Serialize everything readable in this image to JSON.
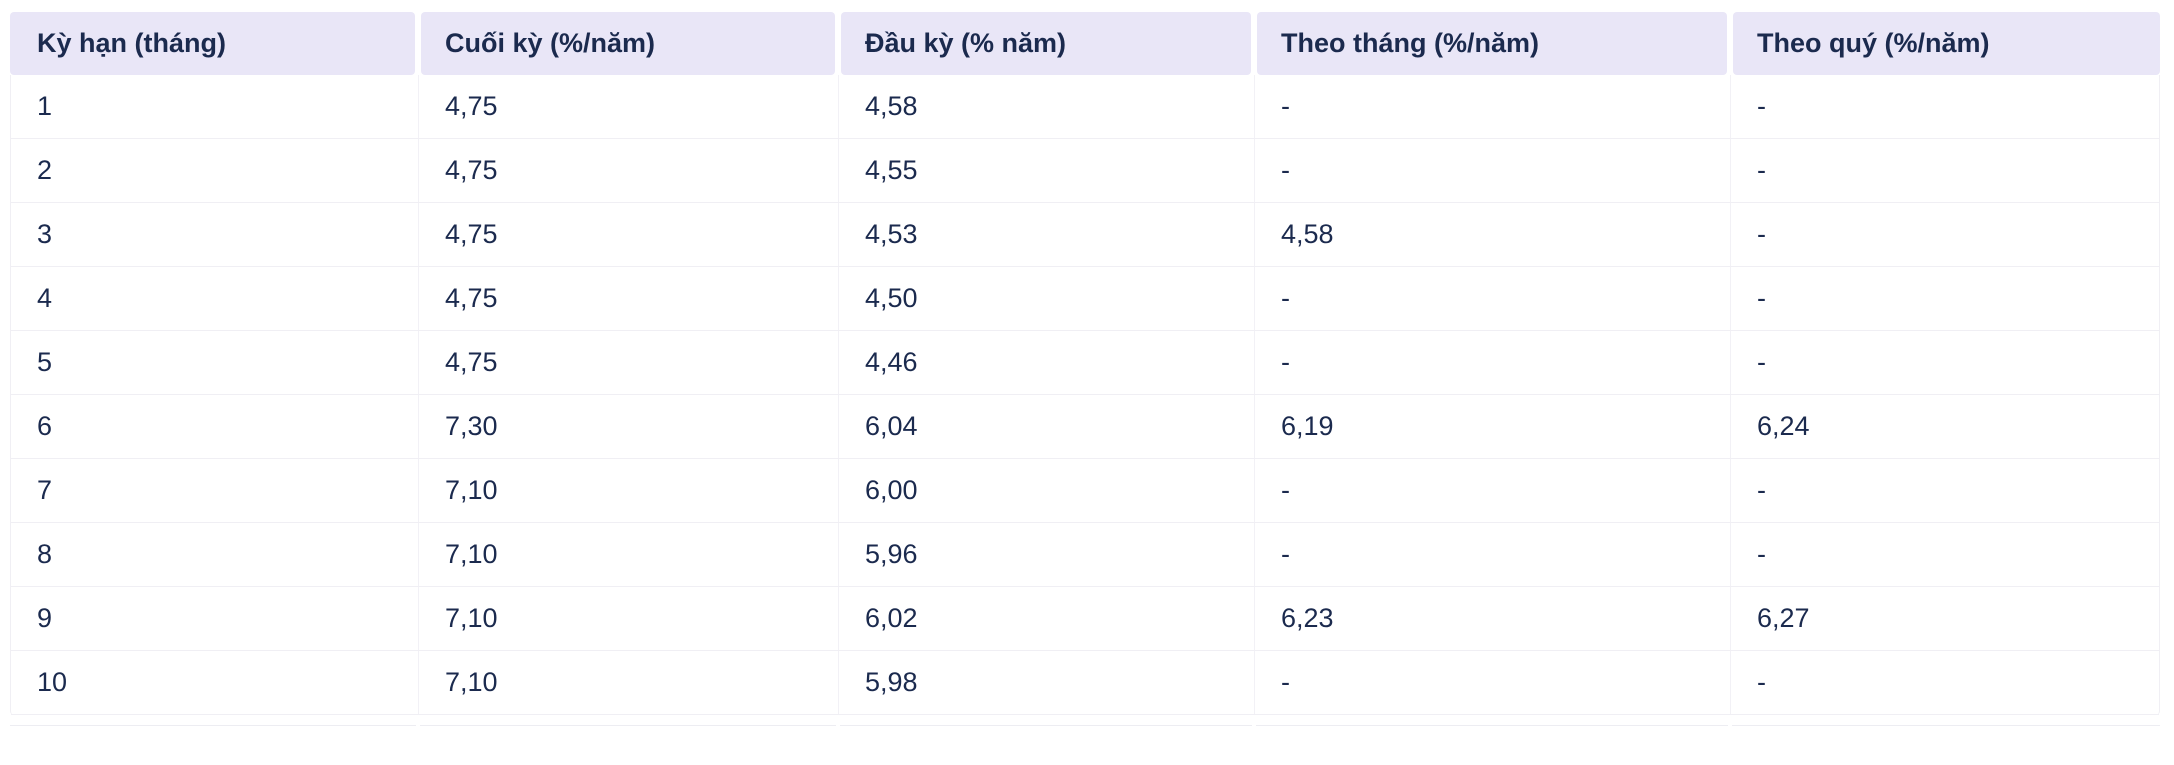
{
  "table": {
    "columns": [
      "Kỳ hạn (tháng)",
      "Cuối kỳ (%/năm)",
      "Đầu kỳ (% năm)",
      "Theo tháng (%/năm)",
      "Theo quý (%/năm)"
    ],
    "rows": [
      [
        "1",
        "4,75",
        "4,58",
        "-",
        "-"
      ],
      [
        "2",
        "4,75",
        "4,55",
        "-",
        "-"
      ],
      [
        "3",
        "4,75",
        "4,53",
        "4,58",
        "-"
      ],
      [
        "4",
        "4,75",
        "4,50",
        "-",
        "-"
      ],
      [
        "5",
        "4,75",
        "4,46",
        "-",
        "-"
      ],
      [
        "6",
        "7,30",
        "6,04",
        "6,19",
        "6,24"
      ],
      [
        "7",
        "7,10",
        "6,00",
        "-",
        "-"
      ],
      [
        "8",
        "7,10",
        "5,96",
        "-",
        "-"
      ],
      [
        "9",
        "7,10",
        "6,02",
        "6,23",
        "6,27"
      ],
      [
        "10",
        "7,10",
        "5,98",
        "-",
        "-"
      ]
    ]
  },
  "colors": {
    "header_background": "#e9e6f7",
    "text": "#1b2a4e",
    "row_border": "#f0eff4",
    "column_border": "#f2f1f6",
    "background": "#ffffff"
  }
}
